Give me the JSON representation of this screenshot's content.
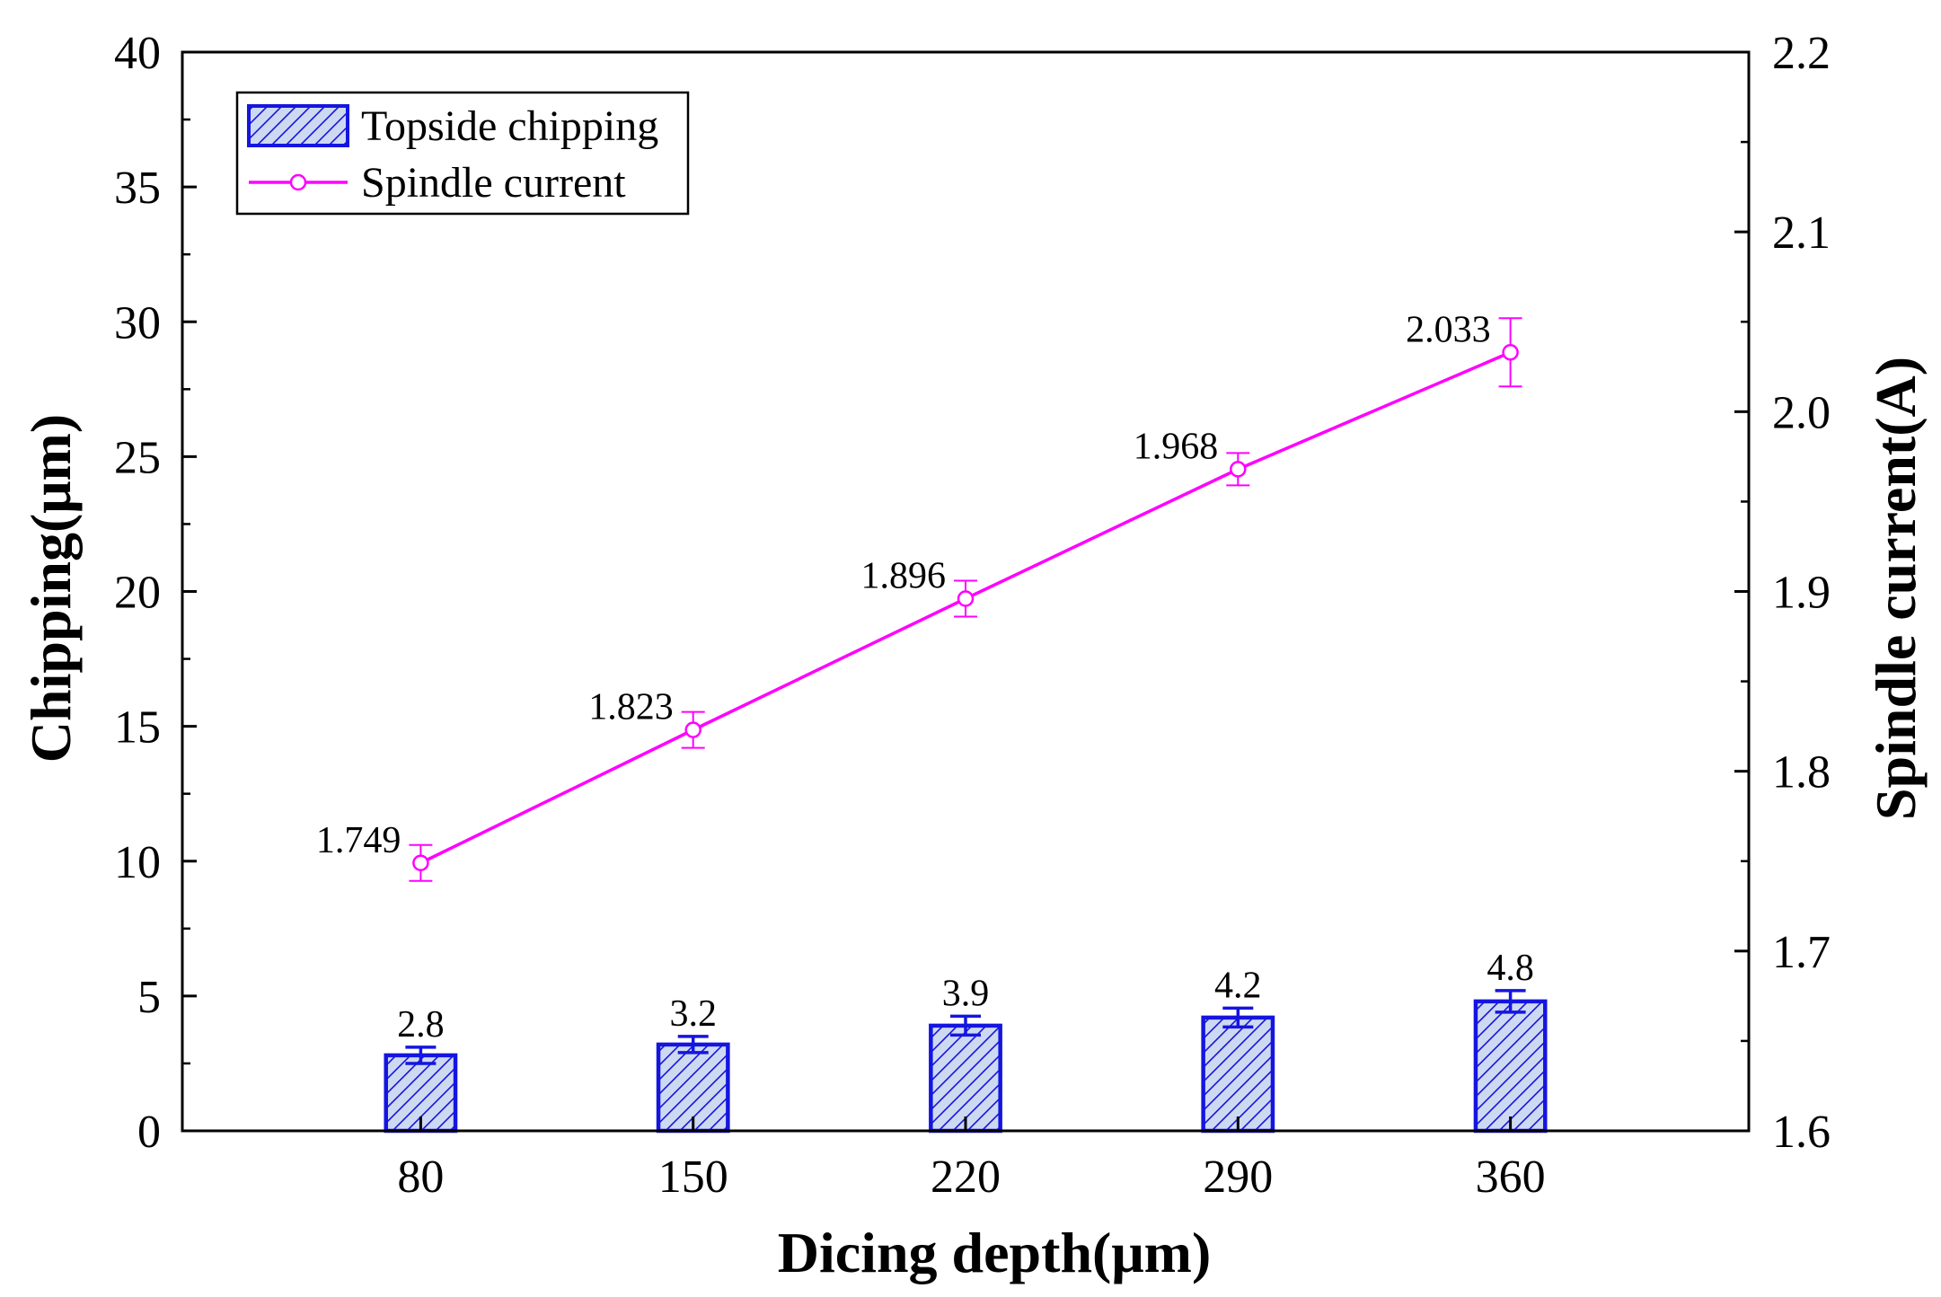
{
  "chart_data": {
    "type": "bar",
    "title": "",
    "xlabel": "Dicing depth(μm)",
    "ylabel": "Chipping(μm)",
    "y2label": "Spindle current(A)",
    "categories": [
      "80",
      "150",
      "220",
      "290",
      "360"
    ],
    "ylim": [
      0,
      40
    ],
    "yticks": [
      0,
      5,
      10,
      15,
      20,
      25,
      30,
      35,
      40
    ],
    "y2lim": [
      1.6,
      2.2
    ],
    "y2ticks": [
      1.6,
      1.7,
      1.8,
      1.9,
      2.0,
      2.1,
      2.2
    ],
    "y2tick_labels": [
      "1.6",
      "1.7",
      "1.8",
      "1.9",
      "2.0",
      "2.1",
      "2.2"
    ],
    "grid": false,
    "legend_position": "top-left",
    "series": [
      {
        "name": "Topside chipping",
        "kind": "bar",
        "axis": "left",
        "values": [
          2.8,
          3.2,
          3.9,
          4.2,
          4.8
        ],
        "labels": [
          "2.8",
          "3.2",
          "3.9",
          "4.2",
          "4.8"
        ],
        "errors": [
          0.3,
          0.3,
          0.35,
          0.35,
          0.4
        ],
        "color": "#1515e0",
        "fill": "#cdd9f0"
      },
      {
        "name": "Spindle current",
        "kind": "line",
        "axis": "right",
        "values": [
          1.749,
          1.823,
          1.896,
          1.968,
          2.033
        ],
        "labels": [
          "1.749",
          "1.823",
          "1.896",
          "1.968",
          "2.033"
        ],
        "errors": [
          0.01,
          0.01,
          0.01,
          0.009,
          0.019
        ],
        "color": "#ff00ff"
      }
    ]
  }
}
